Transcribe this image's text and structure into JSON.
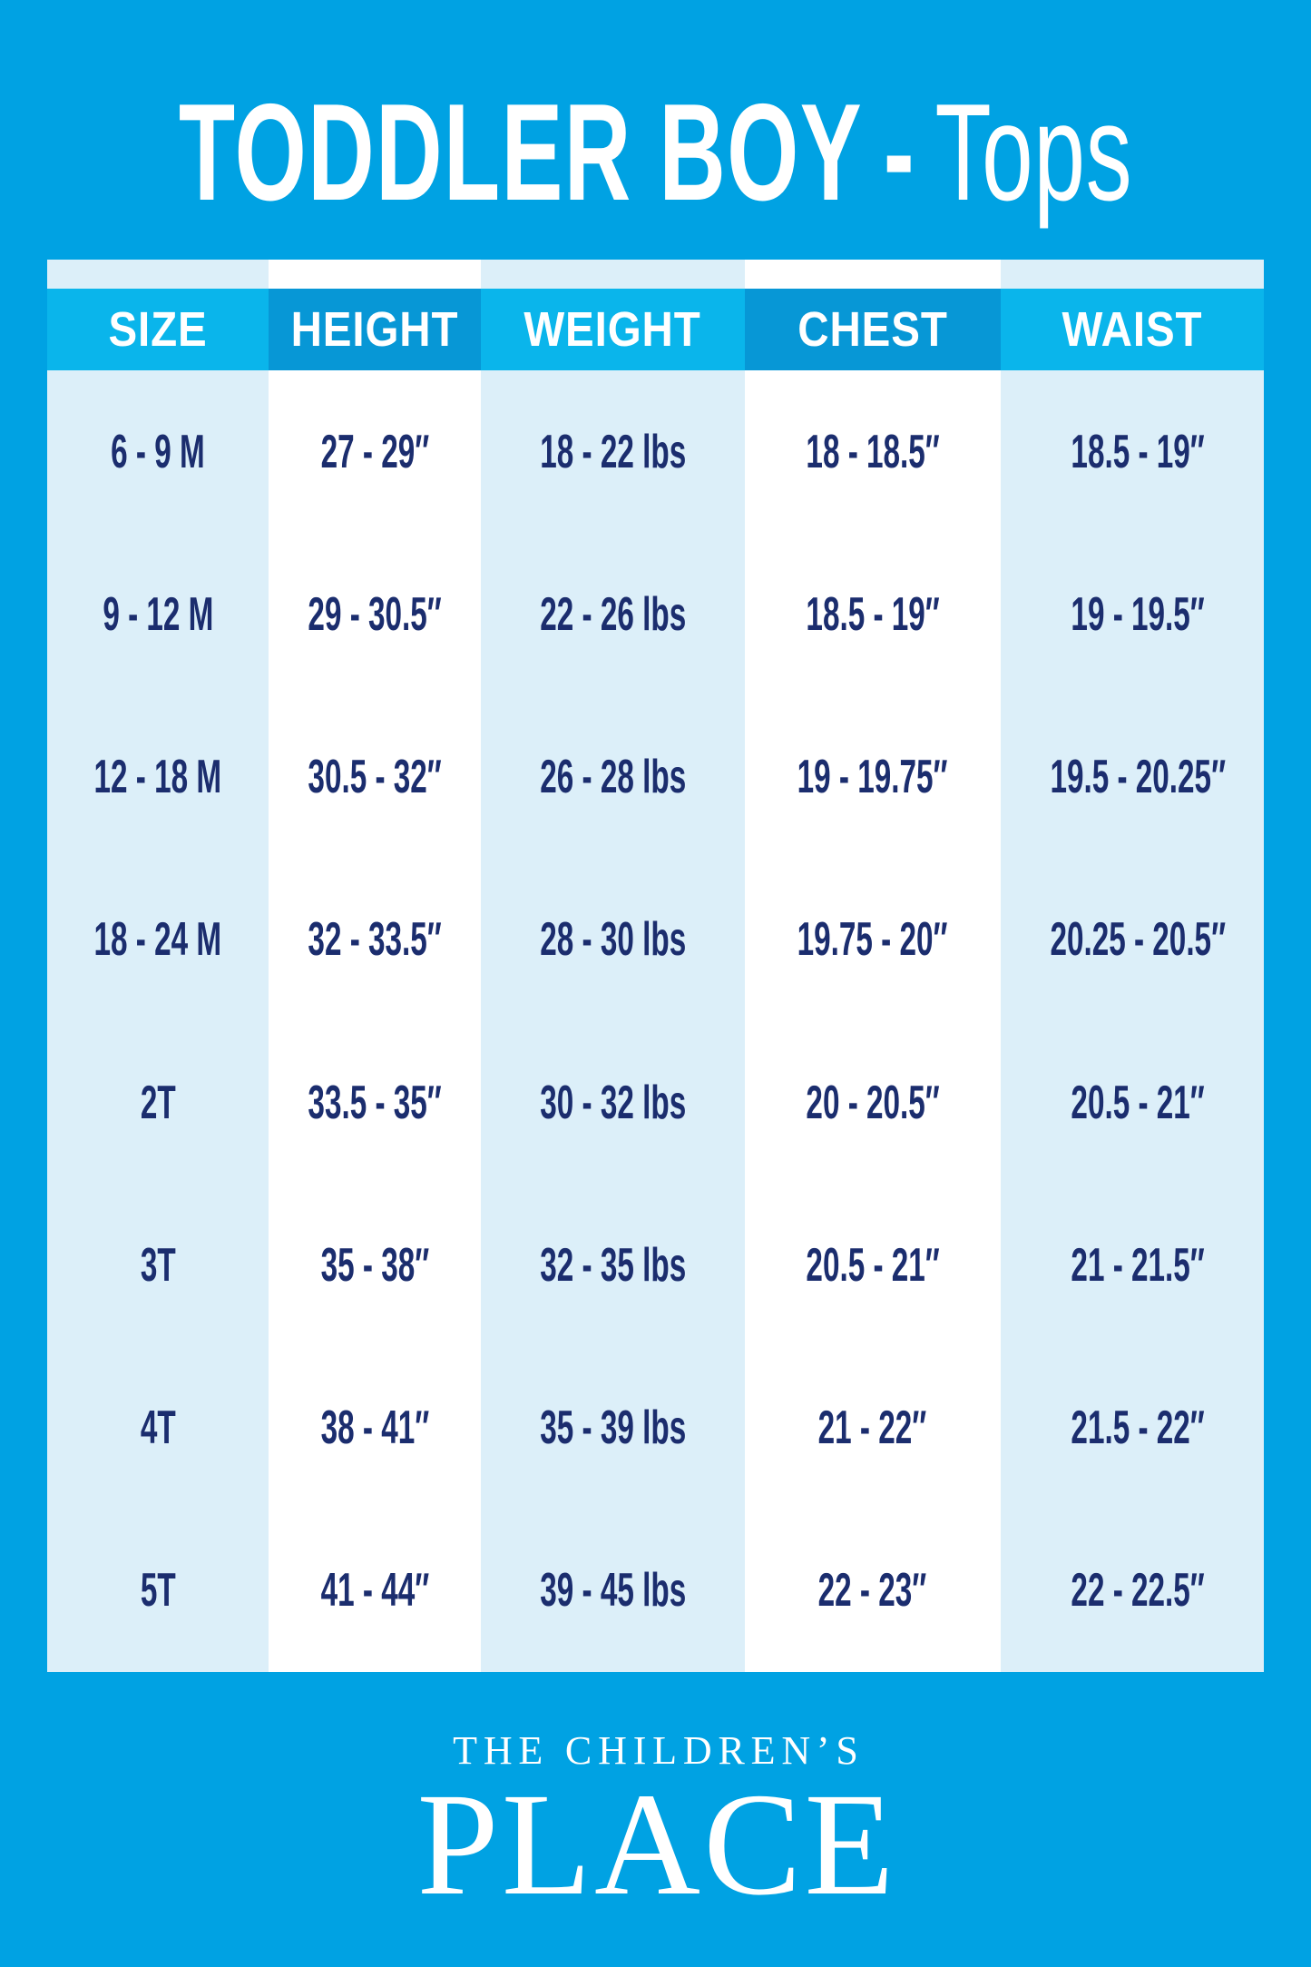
{
  "title": {
    "bold": "TODDLER BOY",
    "separator": "-",
    "light": "Tops"
  },
  "chart_data": {
    "type": "table",
    "title": "TODDLER BOY - Tops",
    "columns": [
      "SIZE",
      "HEIGHT",
      "WEIGHT",
      "CHEST",
      "WAIST"
    ],
    "rows": [
      [
        "6 - 9 M",
        "27 - 29″",
        "18 - 22 lbs",
        "18 - 18.5″",
        "18.5 - 19″"
      ],
      [
        "9 - 12 M",
        "29 - 30.5″",
        "22 - 26 lbs",
        "18.5 - 19″",
        "19 - 19.5″"
      ],
      [
        "12 - 18 M",
        "30.5 - 32″",
        "26 - 28 lbs",
        "19 - 19.75″",
        "19.5 - 20.25″"
      ],
      [
        "18 - 24 M",
        "32 - 33.5″",
        "28 - 30 lbs",
        "19.75 - 20″",
        "20.25 - 20.5″"
      ],
      [
        "2T",
        "33.5 - 35″",
        "30 - 32 lbs",
        "20 - 20.5″",
        "20.5 - 21″"
      ],
      [
        "3T",
        "35 - 38″",
        "32 - 35 lbs",
        "20.5 - 21″",
        "21 - 21.5″"
      ],
      [
        "4T",
        "38 - 41″",
        "35 - 39 lbs",
        "21 - 22″",
        "21.5 - 22″"
      ],
      [
        "5T",
        "41 - 44″",
        "39 - 45 lbs",
        "22 - 23″",
        "22 - 22.5″"
      ]
    ],
    "layout_hints": {
      "column_band_colors": [
        "light",
        "white",
        "light",
        "white",
        "light"
      ],
      "header_band_colors": [
        "cyan",
        "dark",
        "cyan",
        "dark",
        "cyan"
      ],
      "grid": false,
      "legend": "none"
    }
  },
  "footer": {
    "brand_line1": "THE CHILDREN’S",
    "brand_line2": "PLACE"
  },
  "colors": {
    "page_bg": "#00A2E3",
    "header_light": "#0AB5EB",
    "header_dark": "#0797D6",
    "column_light": "#DCEFF9",
    "column_white": "#FFFFFF",
    "body_text": "#1B2D6E",
    "title_text": "#FFFFFF"
  }
}
